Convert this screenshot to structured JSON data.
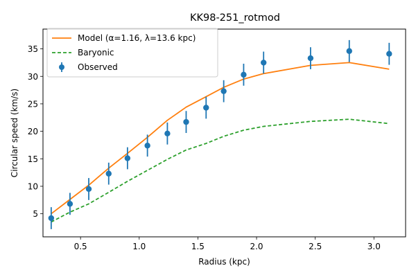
{
  "chart_data": {
    "type": "line",
    "title": "KK98-251_rotmod",
    "xlabel": "Radius (kpc)",
    "ylabel": "Circular speed (km/s)",
    "xlim": [
      0.18,
      3.27
    ],
    "ylim": [
      0.8,
      38.6
    ],
    "xticks": [
      0.5,
      1.0,
      1.5,
      2.0,
      2.5,
      3.0
    ],
    "xtick_labels": [
      "0.5",
      "1.0",
      "1.5",
      "2.0",
      "2.5",
      "3.0"
    ],
    "yticks": [
      5,
      10,
      15,
      20,
      25,
      30,
      35
    ],
    "ytick_labels": [
      "5",
      "10",
      "15",
      "20",
      "25",
      "30",
      "35"
    ],
    "grid": false,
    "legend_position": "upper-left",
    "series": [
      {
        "name": "Model (α=1.16, λ=13.6 kpc)",
        "kind": "line",
        "color": "#ff7f0e",
        "x": [
          0.25,
          0.41,
          0.57,
          0.74,
          0.9,
          1.07,
          1.24,
          1.4,
          1.57,
          1.72,
          1.89,
          2.06,
          2.46,
          2.79,
          3.13
        ],
        "y": [
          5.0,
          7.6,
          10.2,
          13.3,
          16.0,
          18.9,
          22.0,
          24.4,
          26.3,
          28.0,
          29.5,
          30.5,
          32.0,
          32.5,
          31.3
        ]
      },
      {
        "name": "Baryonic",
        "kind": "dashed-line",
        "color": "#2ca02c",
        "x": [
          0.25,
          0.41,
          0.57,
          0.74,
          0.9,
          1.07,
          1.24,
          1.4,
          1.57,
          1.72,
          1.89,
          2.06,
          2.46,
          2.79,
          3.13
        ],
        "y": [
          3.5,
          5.3,
          6.8,
          8.9,
          10.9,
          12.9,
          14.9,
          16.6,
          17.8,
          19.1,
          20.2,
          20.9,
          21.8,
          22.2,
          21.4
        ]
      },
      {
        "name": "Observed",
        "kind": "errorbar",
        "color": "#1f77b4",
        "x": [
          0.25,
          0.41,
          0.57,
          0.74,
          0.9,
          1.07,
          1.24,
          1.4,
          1.57,
          1.72,
          1.89,
          2.06,
          2.46,
          2.79,
          3.13
        ],
        "y": [
          4.2,
          6.8,
          9.5,
          12.3,
          15.1,
          17.4,
          19.6,
          21.7,
          24.3,
          27.3,
          30.3,
          32.5,
          33.3,
          34.6,
          34.1
        ],
        "yerr": [
          2.0,
          2.0,
          2.0,
          2.0,
          2.0,
          2.0,
          2.0,
          2.0,
          2.0,
          2.0,
          2.0,
          2.0,
          2.0,
          2.0,
          2.0
        ]
      }
    ]
  }
}
